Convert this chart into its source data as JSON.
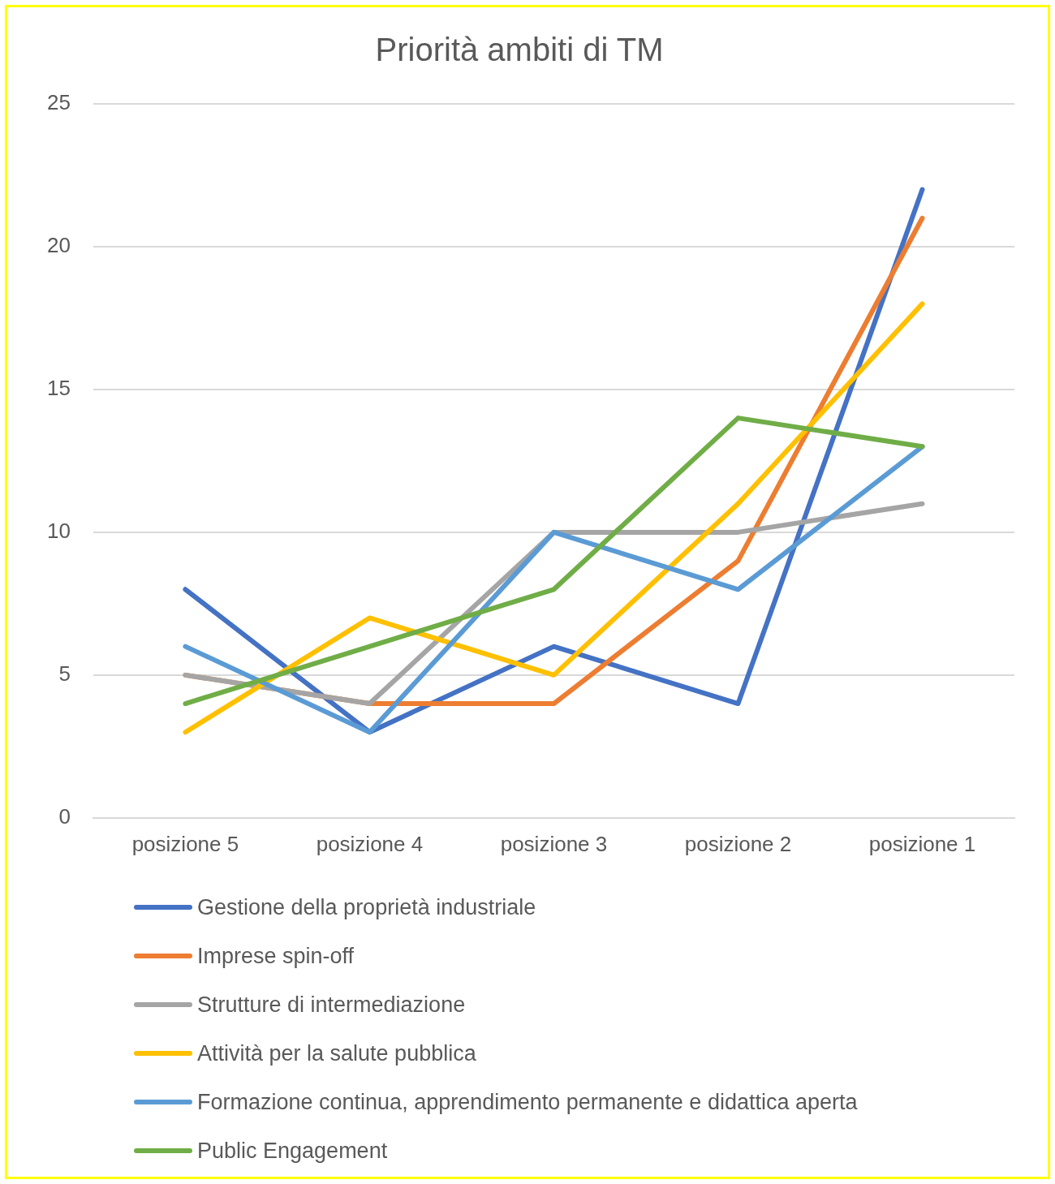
{
  "chart_data": {
    "type": "line",
    "title": "Priorità ambiti di TM",
    "categories": [
      "posizione 5",
      "posizione 4",
      "posizione 3",
      "posizione 2",
      "posizione 1"
    ],
    "series": [
      {
        "name": "Gestione della proprietà industriale",
        "color": "#4472c4",
        "values": [
          8,
          3,
          6,
          4,
          22
        ]
      },
      {
        "name": "Imprese spin-off",
        "color": "#ed7d31",
        "values": [
          5,
          4,
          4,
          9,
          21
        ]
      },
      {
        "name": "Strutture di intermediazione",
        "color": "#a5a5a5",
        "values": [
          5,
          4,
          10,
          10,
          11
        ]
      },
      {
        "name": "Attività per la salute pubblica",
        "color": "#ffc000",
        "values": [
          3,
          7,
          5,
          11,
          18
        ]
      },
      {
        "name": "Formazione continua, apprendimento permanente e didattica aperta",
        "color": "#5b9bd5",
        "values": [
          6,
          3,
          10,
          8,
          13
        ]
      },
      {
        "name": "Public Engagement",
        "color": "#70ad47",
        "values": [
          4,
          6,
          8,
          14,
          13
        ]
      }
    ],
    "ylim": [
      0,
      25
    ],
    "yticks": [
      0,
      5,
      10,
      15,
      20,
      25
    ],
    "grid": "y",
    "legend": "bottom",
    "marker": "none",
    "line_style": "solid"
  }
}
